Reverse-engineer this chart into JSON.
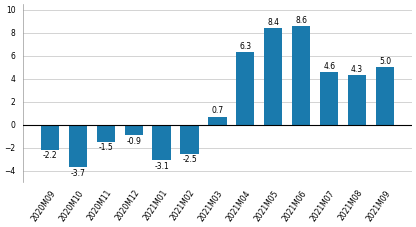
{
  "categories": [
    "2020M09",
    "2020M10",
    "2020M11",
    "2020M12",
    "2021M01",
    "2021M02",
    "2021M03",
    "2021M04",
    "2021M05",
    "2021M06",
    "2021M07",
    "2021M08",
    "2021M09"
  ],
  "values": [
    -2.2,
    -3.7,
    -1.5,
    -0.9,
    -3.1,
    -2.5,
    0.7,
    6.3,
    8.4,
    8.6,
    4.6,
    4.3,
    5.0
  ],
  "bar_color": "#1a7aad",
  "ylim": [
    -5,
    10.5
  ],
  "yticks": [
    -4,
    -2,
    0,
    2,
    4,
    6,
    8,
    10
  ],
  "background_color": "#ffffff",
  "grid_color": "#cccccc",
  "label_fontsize": 5.5,
  "tick_fontsize": 5.5,
  "xlabel_rotation": 55
}
